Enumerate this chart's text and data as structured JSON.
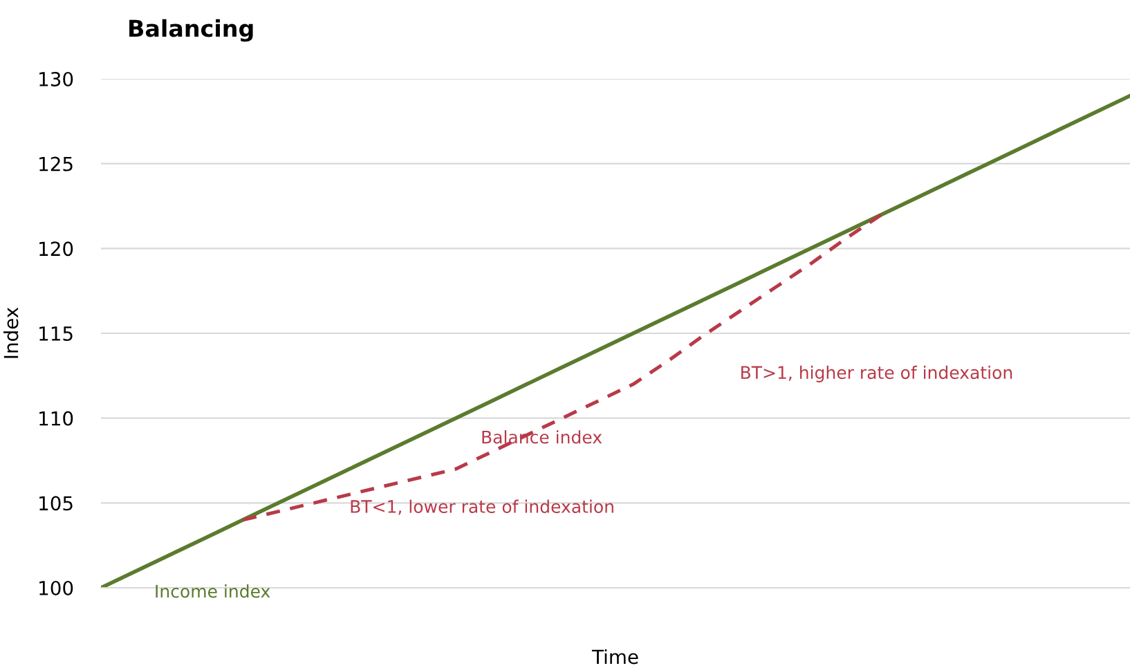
{
  "chart_data": {
    "type": "line",
    "title": "Balancing",
    "xlabel": "Time",
    "ylabel": "Index",
    "categories": [
      null,
      null,
      null,
      null,
      null,
      null,
      null,
      null,
      null,
      null,
      null,
      null,
      null,
      null,
      null,
      null,
      null,
      null,
      null,
      null,
      null,
      null,
      null,
      null,
      null,
      null,
      null,
      null,
      null,
      null
    ],
    "series": [
      {
        "name": "Income index",
        "color": "#5b7b2e",
        "line_style": "solid",
        "values": [
          100,
          101,
          102,
          103,
          104,
          105,
          106,
          107,
          108,
          109,
          110,
          111,
          112,
          113,
          114,
          115,
          116,
          117,
          118,
          119,
          120,
          121,
          122,
          123,
          124,
          125,
          126,
          127,
          128,
          129
        ]
      },
      {
        "name": "Balance index",
        "color": "#b83a48",
        "line_style": "dashed",
        "values": [
          null,
          null,
          null,
          null,
          104,
          104.5,
          105,
          105.5,
          106,
          106.5,
          107,
          108,
          109,
          110,
          111,
          112,
          113.4,
          114.9,
          116.3,
          117.7,
          119.1,
          120.6,
          122,
          null,
          null,
          null,
          null,
          null,
          null,
          null
        ]
      }
    ],
    "annotations": [
      "BT<1, lower rate of indexation",
      "BT>1, higher rate of indexation"
    ],
    "ylim": [
      100,
      130
    ],
    "yticks": [
      100,
      105,
      110,
      115,
      120,
      125,
      130
    ],
    "grid": "y",
    "marker": "none"
  }
}
